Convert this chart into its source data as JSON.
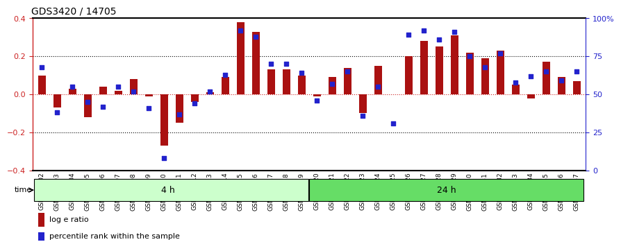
{
  "title": "GDS3420 / 14705",
  "categories": [
    "GSM182402",
    "GSM182403",
    "GSM182404",
    "GSM182405",
    "GSM182406",
    "GSM182407",
    "GSM182408",
    "GSM182409",
    "GSM182410",
    "GSM182411",
    "GSM182412",
    "GSM182413",
    "GSM182414",
    "GSM182415",
    "GSM182416",
    "GSM182417",
    "GSM182418",
    "GSM182419",
    "GSM182420",
    "GSM182421",
    "GSM182422",
    "GSM182423",
    "GSM182424",
    "GSM182425",
    "GSM182426",
    "GSM182427",
    "GSM182428",
    "GSM182429",
    "GSM182430",
    "GSM182431",
    "GSM182432",
    "GSM182433",
    "GSM182434",
    "GSM182435",
    "GSM182436",
    "GSM182437"
  ],
  "log_e_ratio": [
    0.1,
    -0.07,
    0.03,
    -0.12,
    0.04,
    0.02,
    0.08,
    -0.01,
    -0.27,
    -0.15,
    -0.04,
    0.01,
    0.09,
    0.38,
    0.33,
    0.13,
    0.13,
    0.1,
    -0.01,
    0.09,
    0.14,
    -0.1,
    0.15,
    0.0,
    0.2,
    0.28,
    0.25,
    0.31,
    0.22,
    0.19,
    0.23,
    0.05,
    -0.02,
    0.17,
    0.09,
    0.07
  ],
  "percentile_rank": [
    68,
    38,
    55,
    45,
    42,
    55,
    52,
    41,
    8,
    37,
    44,
    52,
    63,
    92,
    88,
    70,
    70,
    64,
    46,
    57,
    65,
    36,
    55,
    31,
    89,
    92,
    86,
    91,
    75,
    68,
    77,
    58,
    62,
    65,
    59,
    65
  ],
  "group_boundary": 18,
  "group1_label": "4 h",
  "group2_label": "24 h",
  "group1_color": "#ccffcc",
  "group2_color": "#66dd66",
  "bar_color": "#aa1111",
  "dot_color": "#2222cc",
  "left_axis_color": "#cc2222",
  "right_axis_color": "#2222cc",
  "ylim_left": [
    -0.4,
    0.4
  ],
  "ylim_right": [
    0,
    100
  ],
  "hline_dotted": [
    0.2,
    -0.2
  ],
  "hline_zero_color": "#cc2222",
  "tick_label_fontsize": 6.5,
  "title_fontsize": 10
}
